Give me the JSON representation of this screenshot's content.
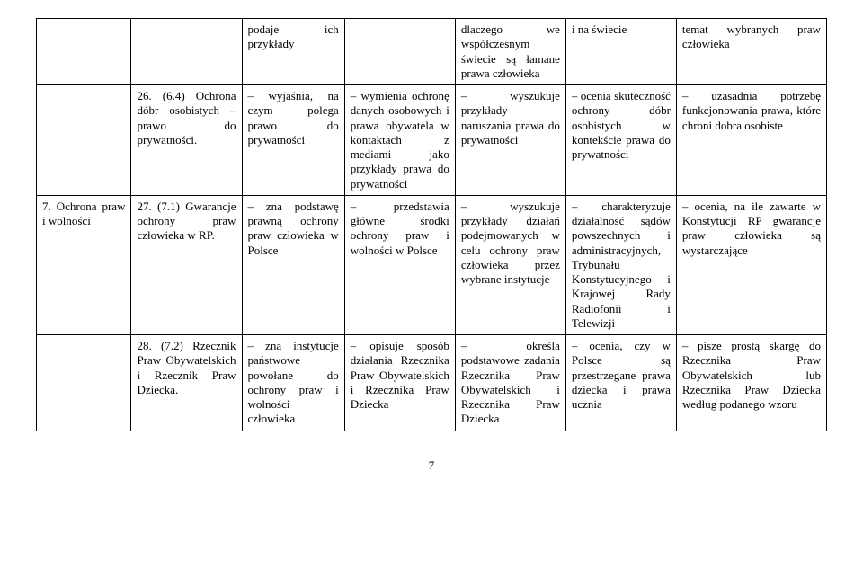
{
  "table": {
    "col_widths": [
      "12%",
      "14%",
      "13%",
      "14%",
      "14%",
      "14%",
      "19%"
    ],
    "rows": [
      {
        "cells": [
          "",
          "",
          "podaje ich przykłady",
          "",
          "dlaczego we współczesnym świecie są łamane prawa człowieka",
          "i na świecie",
          "temat wybranych praw człowieka"
        ]
      },
      {
        "cells": [
          "",
          "26. (6.4) Ochrona dóbr osobistych – prawo do prywatności.",
          "– wyjaśnia, na czym polega prawo do prywatności",
          "– wymienia ochronę danych osobowych i prawa obywatela w kontaktach z mediami jako przykłady prawa do prywatności",
          "– wyszukuje przykłady naruszania prawa do prywatności",
          "– ocenia skuteczność ochrony dóbr osobistych w kontekście prawa do prywatności",
          "– uzasadnia potrzebę funkcjonowania prawa, które chroni dobra osobiste"
        ]
      },
      {
        "cells": [
          "7. Ochrona praw i wolności",
          "27. (7.1) Gwarancje ochrony praw człowieka w RP.",
          "– zna podstawę prawną ochrony praw człowieka w Polsce",
          "– przedstawia główne środki ochrony praw i wolności w Polsce",
          "– wyszukuje przykłady działań podejmowanych w celu ochrony praw człowieka przez wybrane instytucje",
          "– charakteryzuje działalność sądów powszechnych i administracyjnych, Trybunału Konstytucyjnego i Krajowej Rady Radiofonii i Telewizji",
          "– ocenia, na ile zawarte w Konstytucji RP gwarancje praw człowieka są wystarczające"
        ]
      },
      {
        "cells": [
          "",
          "28. (7.2) Rzecznik Praw Obywatelskich i Rzecznik Praw Dziecka.",
          "– zna instytucje państwowe powołane do ochrony praw i wolności człowieka",
          "– opisuje sposób działania Rzecznika Praw Obywatelskich i Rzecznika Praw Dziecka",
          "– określa podstawowe zadania Rzecznika Praw Obywatelskich i Rzecznika Praw Dziecka",
          "– ocenia, czy w Polsce są przestrzegane prawa dziecka i prawa ucznia",
          "– pisze prostą skargę do Rzecznika Praw Obywatelskich lub Rzecznika Praw Dziecka według podanego wzoru"
        ]
      }
    ]
  },
  "page_number": "7"
}
